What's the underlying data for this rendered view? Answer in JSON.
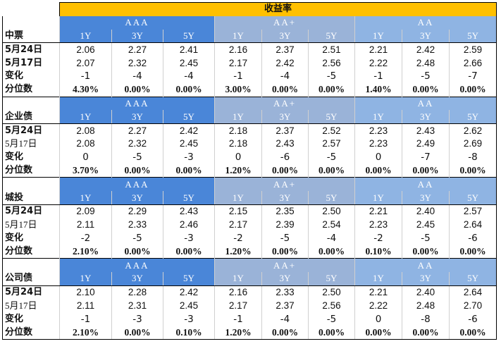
{
  "title": "收益率",
  "groups": [
    "AAA",
    "AA+",
    "AA"
  ],
  "tenors": [
    "1Y",
    "3Y",
    "5Y"
  ],
  "colors": {
    "title_bg": "#ffc000",
    "AAA": "#4a86d8",
    "AA+": "#9ab3d8",
    "AA": "#8fb4e3"
  },
  "sections": [
    {
      "name": "中票",
      "rows": [
        {
          "label": "5月24日",
          "values": [
            "2.06",
            "2.27",
            "2.41",
            "2.16",
            "2.37",
            "2.51",
            "2.21",
            "2.42",
            "2.59"
          ]
        },
        {
          "label": "5月17日",
          "values": [
            "2.07",
            "2.32",
            "2.45",
            "2.17",
            "2.42",
            "2.56",
            "2.22",
            "2.48",
            "2.66"
          ]
        },
        {
          "label": "变化",
          "values": [
            "-1",
            "-4",
            "-4",
            "-1",
            "-4",
            "-5",
            "-1",
            "-5",
            "-7"
          ]
        },
        {
          "label": "分位数",
          "values": [
            "4.30%",
            "0.00%",
            "0.00%",
            "3.00%",
            "0.00%",
            "0.00%",
            "1.40%",
            "0.00%",
            "0.00%"
          ]
        }
      ]
    },
    {
      "name": "企业债",
      "rows": [
        {
          "label": "5月24日",
          "values": [
            "2.08",
            "2.27",
            "2.42",
            "2.18",
            "2.37",
            "2.52",
            "2.23",
            "2.43",
            "2.62"
          ]
        },
        {
          "label": "5月17日",
          "values": [
            "2.08",
            "2.32",
            "2.45",
            "2.18",
            "2.43",
            "2.57",
            "2.23",
            "2.49",
            "2.69"
          ]
        },
        {
          "label": "变化",
          "values": [
            "0",
            "-5",
            "-3",
            "0",
            "-6",
            "-5",
            "0",
            "-7",
            "-8"
          ]
        },
        {
          "label": "分位数",
          "values": [
            "3.70%",
            "0.00%",
            "0.00%",
            "1.20%",
            "0.00%",
            "0.00%",
            "0.00%",
            "0.00%",
            "0.00%"
          ]
        }
      ]
    },
    {
      "name": "城投",
      "rows": [
        {
          "label": "5月24日",
          "values": [
            "2.09",
            "2.29",
            "2.43",
            "2.15",
            "2.35",
            "2.50",
            "2.21",
            "2.40",
            "2.57"
          ]
        },
        {
          "label": "5月17日",
          "values": [
            "2.11",
            "2.33",
            "2.46",
            "2.17",
            "2.39",
            "2.54",
            "2.23",
            "2.45",
            "2.64"
          ]
        },
        {
          "label": "变化",
          "values": [
            "-2",
            "-5",
            "-3",
            "-2",
            "-5",
            "-4",
            "-2",
            "-5",
            "-6"
          ]
        },
        {
          "label": "分位数",
          "values": [
            "2.10%",
            "0.00%",
            "0.00%",
            "1.20%",
            "0.00%",
            "0.00%",
            "0.10%",
            "0.00%",
            "0.00%"
          ]
        }
      ]
    },
    {
      "name": "公司债",
      "rows": [
        {
          "label": "5月24日",
          "values": [
            "2.10",
            "2.28",
            "2.42",
            "2.16",
            "2.33",
            "2.50",
            "2.21",
            "2.40",
            "2.64"
          ]
        },
        {
          "label": "5月17日",
          "values": [
            "2.11",
            "2.31",
            "2.45",
            "2.17",
            "2.37",
            "2.56",
            "2.22",
            "2.48",
            "2.70"
          ]
        },
        {
          "label": "变化",
          "values": [
            "-1",
            "-3",
            "-3",
            "-1",
            "-4",
            "-5",
            "0",
            "-8",
            "-6"
          ]
        },
        {
          "label": "分位数",
          "values": [
            "2.10%",
            "0.00%",
            "0.10%",
            "1.20%",
            "0.00%",
            "0.00%",
            "0.00%",
            "0.00%",
            "0.00%"
          ]
        }
      ]
    }
  ]
}
